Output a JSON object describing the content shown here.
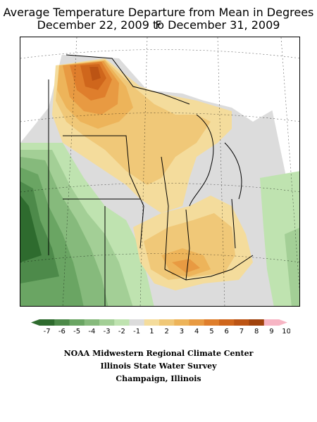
{
  "title_line1": "Average Temperature Departure from Mean in Degrees F",
  "title_line2": "December 22, 2009 to December 31, 2009",
  "legend": {
    "labels": [
      "-7",
      "-6",
      "-5",
      "-4",
      "-3",
      "-2",
      "-1",
      "1",
      "2",
      "3",
      "4",
      "5",
      "6",
      "7",
      "8",
      "9",
      "10"
    ],
    "colors": [
      "#2e6b2e",
      "#4d8a4a",
      "#6aa563",
      "#86ba7c",
      "#a3cf96",
      "#bfe3b0",
      "#dcdcdc",
      "#f4dc9c",
      "#f0c878",
      "#edb45a",
      "#e89a42",
      "#df7e2c",
      "#cf661c",
      "#bc5414",
      "#a0420c",
      "#f7b5c4"
    ]
  },
  "credits": {
    "line1": "NOAA Midwestern Regional Climate Center",
    "line2": "Illinois State Water Survey",
    "line3": "Champaign, Illinois"
  }
}
